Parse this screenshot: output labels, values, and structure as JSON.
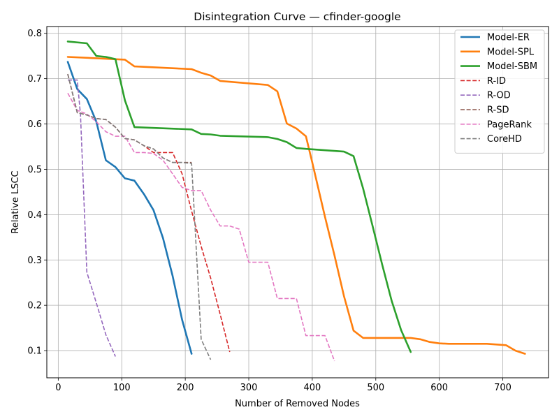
{
  "chart_data": {
    "type": "line",
    "title": "Disintegration Curve — cfinder-google",
    "xlabel": "Number of Removed Nodes",
    "ylabel": "Relative LSCC",
    "xlim": [
      -18,
      772
    ],
    "ylim": [
      0.04,
      0.815
    ],
    "xticks": [
      0,
      100,
      200,
      300,
      400,
      500,
      600,
      700
    ],
    "yticks": [
      0.1,
      0.2,
      0.3,
      0.4,
      0.5,
      0.6,
      0.7,
      0.8
    ],
    "xtick_labels": [
      "0",
      "100",
      "200",
      "300",
      "400",
      "500",
      "600",
      "700"
    ],
    "ytick_labels": [
      "0.1",
      "0.2",
      "0.3",
      "0.4",
      "0.5",
      "0.6",
      "0.7",
      "0.8"
    ],
    "grid": true,
    "legend_position": "top-right",
    "series": [
      {
        "name": "Model-ER",
        "color": "#1f77b4",
        "style": "solid",
        "x": [
          15,
          30,
          45,
          60,
          75,
          90,
          105,
          120,
          135,
          150,
          165,
          180,
          195,
          210
        ],
        "y": [
          0.737,
          0.677,
          0.655,
          0.605,
          0.52,
          0.505,
          0.48,
          0.475,
          0.445,
          0.41,
          0.348,
          0.265,
          0.168,
          0.093
        ]
      },
      {
        "name": "Model-SPL",
        "color": "#ff7f0e",
        "style": "solid",
        "x": [
          15,
          105,
          120,
          210,
          225,
          240,
          255,
          330,
          345,
          360,
          375,
          390,
          400,
          420,
          435,
          450,
          465,
          480,
          555,
          570,
          585,
          600,
          615,
          675,
          705,
          720,
          735
        ],
        "y": [
          0.748,
          0.742,
          0.727,
          0.721,
          0.713,
          0.707,
          0.695,
          0.686,
          0.672,
          0.601,
          0.59,
          0.573,
          0.515,
          0.395,
          0.31,
          0.22,
          0.144,
          0.128,
          0.128,
          0.125,
          0.119,
          0.116,
          0.115,
          0.115,
          0.112,
          0.1,
          0.093
        ]
      },
      {
        "name": "Model-SBM",
        "color": "#2ca02c",
        "style": "solid",
        "x": [
          15,
          45,
          60,
          75,
          90,
          105,
          120,
          210,
          225,
          240,
          255,
          330,
          345,
          360,
          375,
          390,
          450,
          465,
          480,
          495,
          510,
          525,
          540,
          555
        ],
        "y": [
          0.782,
          0.778,
          0.75,
          0.748,
          0.743,
          0.652,
          0.593,
          0.588,
          0.578,
          0.577,
          0.574,
          0.571,
          0.567,
          0.56,
          0.547,
          0.545,
          0.539,
          0.529,
          0.458,
          0.375,
          0.29,
          0.21,
          0.145,
          0.097
        ]
      },
      {
        "name": "R-ID",
        "color": "#d62728",
        "style": "dashed",
        "x": [
          15,
          30,
          45,
          60,
          75,
          90,
          105,
          120,
          135,
          150,
          165,
          180,
          195,
          210,
          225,
          240,
          255,
          270
        ],
        "y": [
          0.71,
          0.625,
          0.62,
          0.612,
          0.61,
          0.593,
          0.568,
          0.565,
          0.552,
          0.537,
          0.537,
          0.537,
          0.49,
          0.408,
          0.33,
          0.26,
          0.18,
          0.097
        ]
      },
      {
        "name": "R-OD",
        "color": "#9467bd",
        "style": "dashed",
        "x": [
          15,
          30,
          35,
          45,
          60,
          75,
          90
        ],
        "y": [
          0.697,
          0.697,
          0.62,
          0.273,
          0.205,
          0.135,
          0.087
        ]
      },
      {
        "name": "R-SD",
        "color": "#8c564b",
        "style": "dashed",
        "x": [
          15,
          30,
          45,
          60,
          75,
          90,
          105,
          120,
          135,
          150,
          165,
          180,
          195,
          210
        ],
        "y": [
          0.71,
          0.625,
          0.62,
          0.612,
          0.61,
          0.593,
          0.568,
          0.565,
          0.552,
          0.545,
          0.525,
          0.515,
          0.515,
          0.515
        ]
      },
      {
        "name": "PageRank",
        "color": "#e377c2",
        "style": "dashed",
        "x": [
          15,
          30,
          45,
          60,
          75,
          90,
          105,
          120,
          135,
          150,
          165,
          180,
          195,
          210,
          225,
          240,
          255,
          270,
          285,
          300,
          315,
          330,
          345,
          360,
          375,
          390,
          405,
          420,
          435
        ],
        "y": [
          0.668,
          0.63,
          0.622,
          0.605,
          0.583,
          0.573,
          0.573,
          0.537,
          0.537,
          0.535,
          0.52,
          0.49,
          0.46,
          0.453,
          0.453,
          0.41,
          0.375,
          0.375,
          0.368,
          0.295,
          0.295,
          0.295,
          0.215,
          0.215,
          0.215,
          0.133,
          0.133,
          0.133,
          0.077
        ]
      },
      {
        "name": "CoreHD",
        "color": "#7f7f7f",
        "style": "dashed",
        "x": [
          15,
          30,
          45,
          60,
          75,
          90,
          105,
          120,
          135,
          150,
          165,
          180,
          195,
          210,
          225,
          240
        ],
        "y": [
          0.71,
          0.625,
          0.62,
          0.612,
          0.61,
          0.593,
          0.568,
          0.565,
          0.552,
          0.545,
          0.525,
          0.515,
          0.515,
          0.513,
          0.125,
          0.08
        ]
      }
    ]
  }
}
